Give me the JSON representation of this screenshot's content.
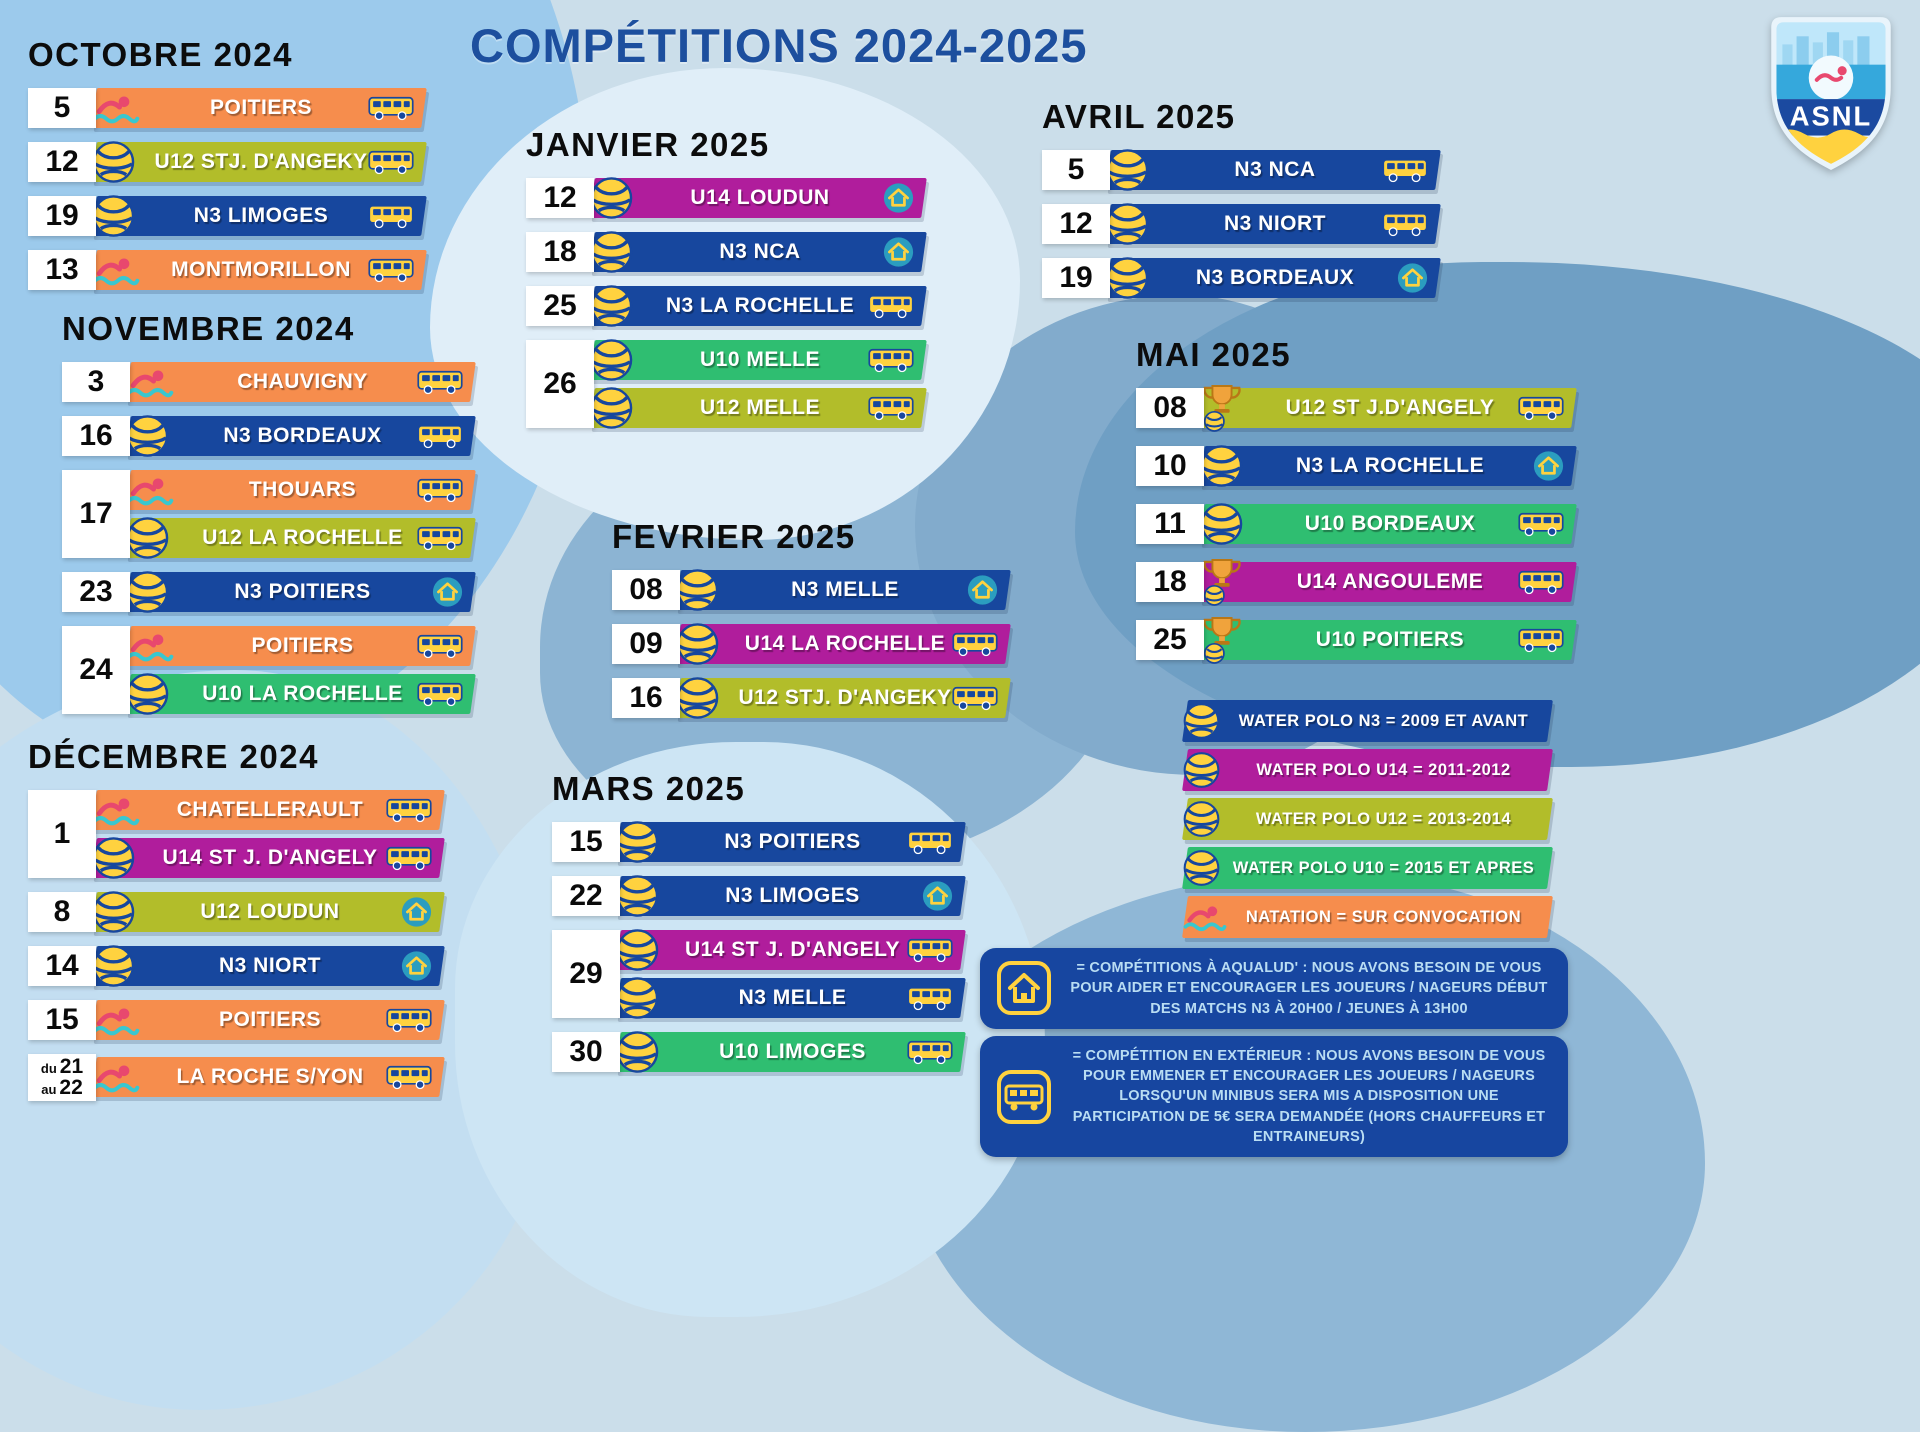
{
  "title": "COMPÉTITIONS 2024-2025",
  "logo": {
    "text": "ASNL"
  },
  "colors": {
    "natation": "#f68d4d",
    "n3": "#17479e",
    "u14": "#b01d9c",
    "u12": "#b2bd2a",
    "u10": "#2fbe71"
  },
  "months": [
    {
      "name": "OCTOBRE 2024",
      "rows": [
        {
          "dates": [
            "5"
          ],
          "entries": [
            {
              "label": "POITIERS",
              "cat": "natation",
              "icon": "swim",
              "venue": "bus"
            }
          ]
        },
        {
          "dates": [
            "12"
          ],
          "entries": [
            {
              "label": "U12 STJ. D'ANGEKY",
              "cat": "u12",
              "icon": "ball",
              "venue": "bus"
            }
          ]
        },
        {
          "dates": [
            "19"
          ],
          "entries": [
            {
              "label": "N3 LIMOGES",
              "cat": "n3",
              "icon": "ball",
              "venue": "bus"
            }
          ]
        },
        {
          "dates": [
            "13"
          ],
          "entries": [
            {
              "label": "MONTMORILLON",
              "cat": "natation",
              "icon": "swim",
              "venue": "bus"
            }
          ]
        }
      ]
    },
    {
      "name": "NOVEMBRE 2024",
      "rows": [
        {
          "dates": [
            "3"
          ],
          "entries": [
            {
              "label": "CHAUVIGNY",
              "cat": "natation",
              "icon": "swim",
              "venue": "bus"
            }
          ]
        },
        {
          "dates": [
            "16"
          ],
          "entries": [
            {
              "label": "N3 BORDEAUX",
              "cat": "n3",
              "icon": "ball",
              "venue": "bus"
            }
          ]
        },
        {
          "dates": [
            "17"
          ],
          "entries": [
            {
              "label": "THOUARS",
              "cat": "natation",
              "icon": "swim",
              "venue": "bus"
            },
            {
              "label": "U12 LA ROCHELLE",
              "cat": "u12",
              "icon": "ball",
              "venue": "bus"
            }
          ]
        },
        {
          "dates": [
            "23"
          ],
          "entries": [
            {
              "label": "N3 POITIERS",
              "cat": "n3",
              "icon": "ball",
              "venue": "house"
            }
          ]
        },
        {
          "dates": [
            "24"
          ],
          "entries": [
            {
              "label": "POITIERS",
              "cat": "natation",
              "icon": "swim",
              "venue": "bus"
            },
            {
              "label": "U10 LA ROCHELLE",
              "cat": "u10",
              "icon": "ball",
              "venue": "bus"
            }
          ]
        }
      ]
    },
    {
      "name": "DÉCEMBRE 2024",
      "rows": [
        {
          "dates": [
            "1"
          ],
          "entries": [
            {
              "label": "CHATELLERAULT",
              "cat": "natation",
              "icon": "swim",
              "venue": "bus"
            },
            {
              "label": "U14 ST J. D'ANGELY",
              "cat": "u14",
              "icon": "ball",
              "venue": "bus"
            }
          ]
        },
        {
          "dates": [
            "8"
          ],
          "entries": [
            {
              "label": "U12 LOUDUN",
              "cat": "u12",
              "icon": "ball",
              "venue": "house"
            }
          ]
        },
        {
          "dates": [
            "14"
          ],
          "entries": [
            {
              "label": "N3 NIORT",
              "cat": "n3",
              "icon": "ball",
              "venue": "house"
            }
          ]
        },
        {
          "dates": [
            "15"
          ],
          "entries": [
            {
              "label": "POITIERS",
              "cat": "natation",
              "icon": "swim",
              "venue": "bus"
            }
          ]
        },
        {
          "dates": [
            "du 21",
            "au 22"
          ],
          "entries": [
            {
              "label": "LA ROCHE S/YON",
              "cat": "natation",
              "icon": "swim",
              "venue": "bus"
            }
          ]
        }
      ]
    },
    {
      "name": "JANVIER 2025",
      "rows": [
        {
          "dates": [
            "12"
          ],
          "entries": [
            {
              "label": "U14 LOUDUN",
              "cat": "u14",
              "icon": "ball",
              "venue": "house"
            }
          ]
        },
        {
          "dates": [
            "18"
          ],
          "entries": [
            {
              "label": "N3 NCA",
              "cat": "n3",
              "icon": "ball",
              "venue": "house"
            }
          ]
        },
        {
          "dates": [
            "25"
          ],
          "entries": [
            {
              "label": "N3 LA ROCHELLE",
              "cat": "n3",
              "icon": "ball",
              "venue": "bus"
            }
          ]
        },
        {
          "dates": [
            "26"
          ],
          "entries": [
            {
              "label": "U10 MELLE",
              "cat": "u10",
              "icon": "ball",
              "venue": "bus"
            },
            {
              "label": "U12 MELLE",
              "cat": "u12",
              "icon": "ball",
              "venue": "bus"
            }
          ]
        }
      ]
    },
    {
      "name": "FEVRIER 2025",
      "rows": [
        {
          "dates": [
            "08"
          ],
          "entries": [
            {
              "label": "N3 MELLE",
              "cat": "n3",
              "icon": "ball",
              "venue": "house"
            }
          ]
        },
        {
          "dates": [
            "09"
          ],
          "entries": [
            {
              "label": "U14 LA ROCHELLE",
              "cat": "u14",
              "icon": "ball",
              "venue": "bus"
            }
          ]
        },
        {
          "dates": [
            "16"
          ],
          "entries": [
            {
              "label": "U12 STJ. D'ANGEKY",
              "cat": "u12",
              "icon": "ball",
              "venue": "bus"
            }
          ]
        }
      ]
    },
    {
      "name": "MARS 2025",
      "rows": [
        {
          "dates": [
            "15"
          ],
          "entries": [
            {
              "label": "N3 POITIERS",
              "cat": "n3",
              "icon": "ball",
              "venue": "bus"
            }
          ]
        },
        {
          "dates": [
            "22"
          ],
          "entries": [
            {
              "label": "N3 LIMOGES",
              "cat": "n3",
              "icon": "ball",
              "venue": "house"
            }
          ]
        },
        {
          "dates": [
            "29"
          ],
          "entries": [
            {
              "label": "U14 ST J. D'ANGELY",
              "cat": "u14",
              "icon": "ball",
              "venue": "bus"
            },
            {
              "label": "N3 MELLE",
              "cat": "n3",
              "icon": "ball",
              "venue": "bus"
            }
          ]
        },
        {
          "dates": [
            "30"
          ],
          "entries": [
            {
              "label": "U10 LIMOGES",
              "cat": "u10",
              "icon": "ball",
              "venue": "bus"
            }
          ]
        }
      ]
    },
    {
      "name": "AVRIL 2025",
      "rows": [
        {
          "dates": [
            "5"
          ],
          "entries": [
            {
              "label": "N3 NCA",
              "cat": "n3",
              "icon": "ball",
              "venue": "bus"
            }
          ]
        },
        {
          "dates": [
            "12"
          ],
          "entries": [
            {
              "label": "N3 NIORT",
              "cat": "n3",
              "icon": "ball",
              "venue": "bus"
            }
          ]
        },
        {
          "dates": [
            "19"
          ],
          "entries": [
            {
              "label": "N3 BORDEAUX",
              "cat": "n3",
              "icon": "ball",
              "venue": "house"
            }
          ]
        }
      ]
    },
    {
      "name": "MAI 2025",
      "rows": [
        {
          "dates": [
            "08"
          ],
          "entries": [
            {
              "label": "U12 ST J.D'ANGELY",
              "cat": "u12",
              "icon": "cup",
              "venue": "bus"
            }
          ]
        },
        {
          "dates": [
            "10"
          ],
          "entries": [
            {
              "label": "N3 LA ROCHELLE",
              "cat": "n3",
              "icon": "ball",
              "venue": "house"
            }
          ]
        },
        {
          "dates": [
            "11"
          ],
          "entries": [
            {
              "label": "U10 BORDEAUX",
              "cat": "u10",
              "icon": "ball",
              "venue": "bus"
            }
          ]
        },
        {
          "dates": [
            "18"
          ],
          "entries": [
            {
              "label": "U14 ANGOULEME",
              "cat": "u14",
              "icon": "cup",
              "venue": "bus"
            }
          ]
        },
        {
          "dates": [
            "25"
          ],
          "entries": [
            {
              "label": "U10 POITIERS",
              "cat": "u10",
              "icon": "cup",
              "venue": "bus"
            }
          ]
        }
      ]
    }
  ],
  "legend": [
    {
      "label": "WATER POLO N3 = 2009 ET AVANT",
      "cat": "n3",
      "icon": "ball"
    },
    {
      "label": "WATER POLO U14 = 2011-2012",
      "cat": "u14",
      "icon": "ball"
    },
    {
      "label": "WATER POLO U12 = 2013-2014",
      "cat": "u12",
      "icon": "ball"
    },
    {
      "label": "WATER POLO U10 = 2015 ET APRES",
      "cat": "u10",
      "icon": "ball"
    },
    {
      "label": "NATATION = SUR CONVOCATION",
      "cat": "natation",
      "icon": "swim"
    }
  ],
  "info_box": [
    {
      "icon": "info-house",
      "text": "= COMPÉTITIONS À AQUALUD' : NOUS AVONS BESOIN DE VOUS POUR AIDER ET ENCOURAGER LES JOUEURS / NAGEURS DÉBUT DES MATCHS N3 À 20H00 / JEUNES À 13H00"
    },
    {
      "icon": "info-bus",
      "text": "= COMPÉTITION EN EXTÉRIEUR : NOUS AVONS BESOIN DE VOUS POUR EMMENER ET ENCOURAGER LES JOUEURS / NAGEURS LORSQU'UN MINIBUS SERA MIS A DISPOSITION UNE PARTICIPATION DE 5€ SERA DEMANDÉE (HORS CHAUFFEURS ET ENTRAINEURS)"
    }
  ]
}
